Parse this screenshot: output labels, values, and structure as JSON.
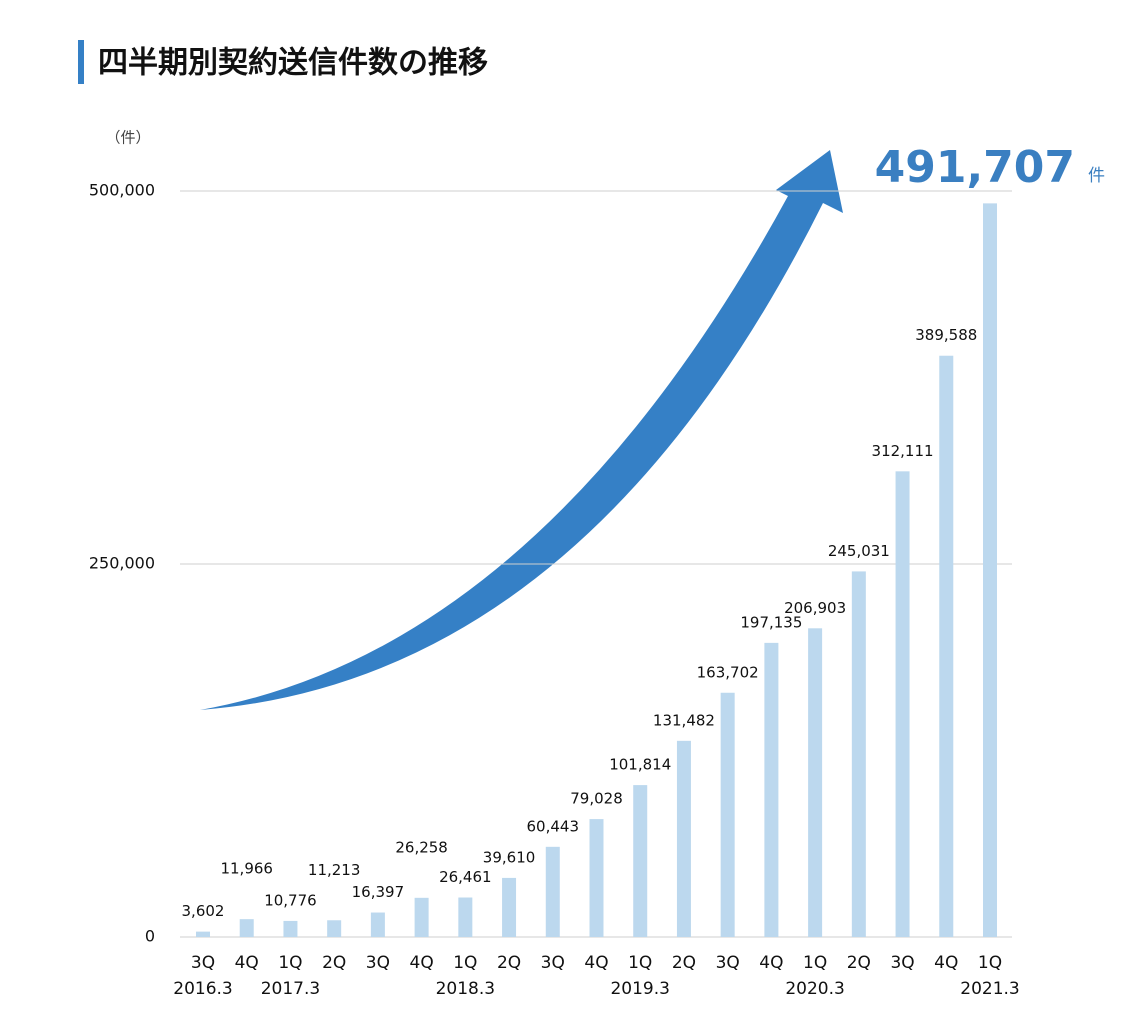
{
  "chart_data": {
    "type": "bar",
    "title": "四半期別契約送信件数の推移",
    "y_unit": "（件）",
    "categories": [
      "3Q",
      "4Q",
      "1Q",
      "2Q",
      "3Q",
      "4Q",
      "1Q",
      "2Q",
      "3Q",
      "4Q",
      "1Q",
      "2Q",
      "3Q",
      "4Q",
      "1Q",
      "2Q",
      "3Q",
      "4Q",
      "1Q"
    ],
    "category_groups": [
      "2016.3",
      null,
      "2017.3",
      null,
      null,
      null,
      "2018.3",
      null,
      null,
      null,
      "2019.3",
      null,
      null,
      null,
      "2020.3",
      null,
      null,
      null,
      "2021.3"
    ],
    "values": [
      3602,
      11966,
      10776,
      11213,
      16397,
      26258,
      26461,
      39610,
      60443,
      79028,
      101814,
      131482,
      163702,
      197135,
      206903,
      245031,
      312111,
      389588,
      491707
    ],
    "value_labels": [
      "3,602",
      "11,966",
      "10,776",
      "11,213",
      "16,397",
      "26,258",
      "26,461",
      "39,610",
      "60,443",
      "79,028",
      "101,814",
      "131,482",
      "163,702",
      "197,135",
      "206,903",
      "245,031",
      "312,111",
      "389,588",
      "491,707"
    ],
    "highlight_unit": "件",
    "color": "#bcd8ee",
    "arrow_color": "#3580c6",
    "highlight_color": "#3a7fc1",
    "ylim": [
      0,
      500000
    ],
    "yticks": [
      0,
      {
        "value": 250000,
        "label": "250,000"
      },
      {
        "value": 500000,
        "label": "500,000"
      }
    ],
    "grid": true
  }
}
